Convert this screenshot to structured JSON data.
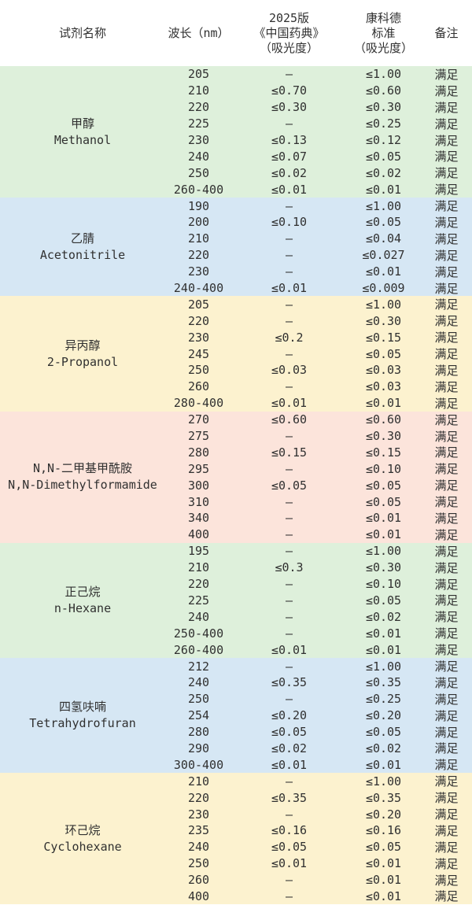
{
  "table": {
    "headers": [
      "试剂名称",
      "波长（nm）",
      "2025版\n《中国药典》\n（吸光度）",
      "康科德\n标准\n（吸光度）",
      "备注"
    ],
    "groups": [
      {
        "name_zh": "甲醇",
        "name_en": "Methanol",
        "bg": "#def0db",
        "rows": [
          [
            "205",
            "–",
            "≤1.00",
            "满足"
          ],
          [
            "210",
            "≤0.70",
            "≤0.60",
            "满足"
          ],
          [
            "220",
            "≤0.30",
            "≤0.30",
            "满足"
          ],
          [
            "225",
            "–",
            "≤0.25",
            "满足"
          ],
          [
            "230",
            "≤0.13",
            "≤0.12",
            "满足"
          ],
          [
            "240",
            "≤0.07",
            "≤0.05",
            "满足"
          ],
          [
            "250",
            "≤0.02",
            "≤0.02",
            "满足"
          ],
          [
            "260-400",
            "≤0.01",
            "≤0.01",
            "满足"
          ]
        ]
      },
      {
        "name_zh": "乙腈",
        "name_en": "Acetonitrile",
        "bg": "#d6e7f4",
        "rows": [
          [
            "190",
            "–",
            "≤1.00",
            "满足"
          ],
          [
            "200",
            "≤0.10",
            "≤0.05",
            "满足"
          ],
          [
            "210",
            "–",
            "≤0.04",
            "满足"
          ],
          [
            "220",
            "–",
            "≤0.027",
            "满足"
          ],
          [
            "230",
            "–",
            "≤0.01",
            "满足"
          ],
          [
            "240-400",
            "≤0.01",
            "≤0.009",
            "满足"
          ]
        ]
      },
      {
        "name_zh": "异丙醇",
        "name_en": "2-Propanol",
        "bg": "#fcf2cf",
        "rows": [
          [
            "205",
            "–",
            "≤1.00",
            "满足"
          ],
          [
            "220",
            "–",
            "≤0.30",
            "满足"
          ],
          [
            "230",
            "≤0.2",
            "≤0.15",
            "满足"
          ],
          [
            "245",
            "–",
            "≤0.05",
            "满足"
          ],
          [
            "250",
            "≤0.03",
            "≤0.03",
            "满足"
          ],
          [
            "260",
            "–",
            "≤0.03",
            "满足"
          ],
          [
            "280-400",
            "≤0.01",
            "≤0.01",
            "满足"
          ]
        ]
      },
      {
        "name_zh": "N,N-二甲基甲酰胺",
        "name_en": "N,N-Dimethylformamide",
        "bg": "#fce4db",
        "rows": [
          [
            "270",
            "≤0.60",
            "≤0.60",
            "满足"
          ],
          [
            "275",
            "–",
            "≤0.30",
            "满足"
          ],
          [
            "280",
            "≤0.15",
            "≤0.15",
            "满足"
          ],
          [
            "295",
            "–",
            "≤0.10",
            "满足"
          ],
          [
            "300",
            "≤0.05",
            "≤0.05",
            "满足"
          ],
          [
            "310",
            "–",
            "≤0.05",
            "满足"
          ],
          [
            "340",
            "–",
            "≤0.01",
            "满足"
          ],
          [
            "400",
            "–",
            "≤0.01",
            "满足"
          ]
        ]
      },
      {
        "name_zh": "正己烷",
        "name_en": "n-Hexane",
        "bg": "#def0db",
        "rows": [
          [
            "195",
            "–",
            "≤1.00",
            "满足"
          ],
          [
            "210",
            "≤0.3",
            "≤0.30",
            "满足"
          ],
          [
            "220",
            "–",
            "≤0.10",
            "满足"
          ],
          [
            "225",
            "–",
            "≤0.05",
            "满足"
          ],
          [
            "240",
            "–",
            "≤0.02",
            "满足"
          ],
          [
            "250-400",
            "–",
            "≤0.01",
            "满足"
          ],
          [
            "260-400",
            "≤0.01",
            "≤0.01",
            "满足"
          ]
        ]
      },
      {
        "name_zh": "四氢呋喃",
        "name_en": "Tetrahydrofuran",
        "bg": "#d6e7f4",
        "rows": [
          [
            "212",
            "–",
            "≤1.00",
            "满足"
          ],
          [
            "240",
            "≤0.35",
            "≤0.35",
            "满足"
          ],
          [
            "250",
            "–",
            "≤0.25",
            "满足"
          ],
          [
            "254",
            "≤0.20",
            "≤0.20",
            "满足"
          ],
          [
            "280",
            "≤0.05",
            "≤0.05",
            "满足"
          ],
          [
            "290",
            "≤0.02",
            "≤0.02",
            "满足"
          ],
          [
            "300-400",
            "≤0.01",
            "≤0.01",
            "满足"
          ]
        ]
      },
      {
        "name_zh": "环己烷",
        "name_en": "Cyclohexane",
        "bg": "#fcf2cf",
        "rows": [
          [
            "210",
            "–",
            "≤1.00",
            "满足"
          ],
          [
            "220",
            "≤0.35",
            "≤0.35",
            "满足"
          ],
          [
            "230",
            "–",
            "≤0.20",
            "满足"
          ],
          [
            "235",
            "≤0.16",
            "≤0.16",
            "满足"
          ],
          [
            "240",
            "≤0.05",
            "≤0.05",
            "满足"
          ],
          [
            "250",
            "≤0.01",
            "≤0.01",
            "满足"
          ],
          [
            "260",
            "–",
            "≤0.01",
            "满足"
          ],
          [
            "400",
            "–",
            "≤0.01",
            "满足"
          ]
        ]
      }
    ]
  },
  "colors": {
    "text": "#303030",
    "background": "#ffffff",
    "group_green": "#def0db",
    "group_blue": "#d6e7f4",
    "group_yellow": "#fcf2cf",
    "group_pink": "#fce4db"
  }
}
